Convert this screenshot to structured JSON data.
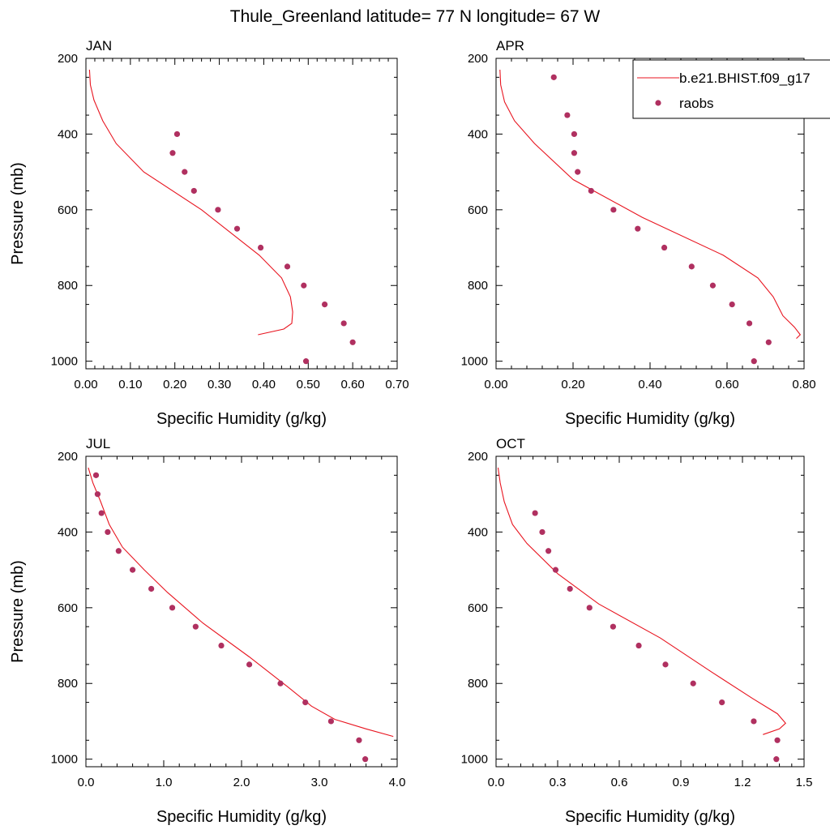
{
  "title": "Thule_Greenland  latitude= 77 N longitude= 67 W",
  "legend": {
    "placement": "top-right",
    "model_label": "b.e21.BHIST.f09_g17",
    "obs_label": "raobs",
    "model_color": "#e8141f",
    "obs_color": "#b03060"
  },
  "chart_data": [
    {
      "type": "line",
      "panel_label": "JAN",
      "xlabel": "Specific Humidity (g/kg)",
      "ylabel": "Pressure (mb)",
      "xlim": [
        0,
        0.7
      ],
      "ylim": [
        200,
        1020
      ],
      "y_reversed": true,
      "x_ticks": [
        "0.00",
        "0.10",
        "0.20",
        "0.30",
        "0.40",
        "0.50",
        "0.60",
        "0.70"
      ],
      "y_ticks": [
        "200",
        "400",
        "600",
        "800",
        "1000"
      ],
      "model": {
        "x": [
          0.008,
          0.01,
          0.018,
          0.038,
          0.068,
          0.13,
          0.26,
          0.39,
          0.44,
          0.46,
          0.465,
          0.463,
          0.445,
          0.387
        ],
        "y": [
          230,
          270,
          310,
          365,
          425,
          500,
          600,
          720,
          780,
          830,
          870,
          900,
          915,
          930
        ]
      },
      "raobs": {
        "x": [
          0.205,
          0.195,
          0.222,
          0.243,
          0.297,
          0.34,
          0.393,
          0.453,
          0.49,
          0.537,
          0.58,
          0.6,
          0.495
        ],
        "y": [
          400,
          450,
          500,
          550,
          600,
          650,
          700,
          750,
          800,
          850,
          900,
          950,
          1000
        ]
      }
    },
    {
      "type": "line",
      "panel_label": "APR",
      "xlabel": "Specific Humidity (g/kg)",
      "ylabel": "",
      "xlim": [
        0,
        0.8
      ],
      "ylim": [
        200,
        1020
      ],
      "y_reversed": true,
      "x_ticks": [
        "0.00",
        "0.20",
        "0.40",
        "0.60",
        "0.80"
      ],
      "y_ticks": [
        "200",
        "400",
        "600",
        "800",
        "1000"
      ],
      "model": {
        "x": [
          0.01,
          0.012,
          0.022,
          0.048,
          0.1,
          0.2,
          0.38,
          0.59,
          0.68,
          0.72,
          0.745,
          0.775,
          0.79,
          0.78
        ],
        "y": [
          230,
          270,
          315,
          365,
          425,
          520,
          620,
          720,
          780,
          830,
          880,
          910,
          930,
          940
        ]
      },
      "raobs": {
        "x": [
          0.15,
          0.185,
          0.203,
          0.203,
          0.212,
          0.247,
          0.305,
          0.368,
          0.437,
          0.508,
          0.563,
          0.613,
          0.658,
          0.708,
          0.67
        ],
        "y": [
          250,
          350,
          400,
          450,
          500,
          550,
          600,
          650,
          700,
          750,
          800,
          850,
          900,
          950,
          1000
        ]
      }
    },
    {
      "type": "line",
      "panel_label": "JUL",
      "xlabel": "Specific Humidity (g/kg)",
      "ylabel": "Pressure (mb)",
      "xlim": [
        0,
        4.0
      ],
      "ylim": [
        200,
        1020
      ],
      "y_reversed": true,
      "x_ticks": [
        "0.0",
        "1.0",
        "2.0",
        "3.0",
        "4.0"
      ],
      "y_ticks": [
        "200",
        "400",
        "600",
        "800",
        "1000"
      ],
      "model": {
        "x": [
          0.03,
          0.09,
          0.19,
          0.3,
          0.47,
          0.75,
          1.05,
          1.5,
          2.1,
          2.6,
          2.9,
          3.2,
          3.6,
          3.95
        ],
        "y": [
          230,
          270,
          320,
          380,
          440,
          500,
          560,
          640,
          730,
          810,
          860,
          895,
          920,
          940
        ]
      },
      "raobs": {
        "x": [
          0.13,
          0.15,
          0.2,
          0.28,
          0.42,
          0.6,
          0.84,
          1.11,
          1.41,
          1.74,
          2.1,
          2.5,
          2.82,
          3.15,
          3.51,
          3.59
        ],
        "y": [
          250,
          300,
          350,
          400,
          450,
          500,
          550,
          600,
          650,
          700,
          750,
          800,
          850,
          900,
          950,
          1000
        ]
      }
    },
    {
      "type": "line",
      "panel_label": "OCT",
      "xlabel": "Specific Humidity (g/kg)",
      "ylabel": "",
      "xlim": [
        0,
        1.5
      ],
      "ylim": [
        200,
        1020
      ],
      "y_reversed": true,
      "x_ticks": [
        "0.0",
        "0.3",
        "0.6",
        "0.9",
        "1.2",
        "1.5"
      ],
      "y_ticks": [
        "200",
        "400",
        "600",
        "800",
        "1000"
      ],
      "model": {
        "x": [
          0.01,
          0.02,
          0.04,
          0.08,
          0.15,
          0.3,
          0.5,
          0.8,
          1.05,
          1.25,
          1.37,
          1.41,
          1.38,
          1.3
        ],
        "y": [
          230,
          270,
          320,
          380,
          430,
          510,
          590,
          680,
          770,
          840,
          880,
          905,
          920,
          935
        ]
      },
      "raobs": {
        "x": [
          0.19,
          0.225,
          0.255,
          0.29,
          0.36,
          0.455,
          0.57,
          0.695,
          0.825,
          0.96,
          1.1,
          1.255,
          1.37,
          1.365
        ],
        "y": [
          350,
          400,
          450,
          500,
          550,
          600,
          650,
          700,
          750,
          800,
          850,
          900,
          950,
          1000
        ]
      }
    }
  ]
}
